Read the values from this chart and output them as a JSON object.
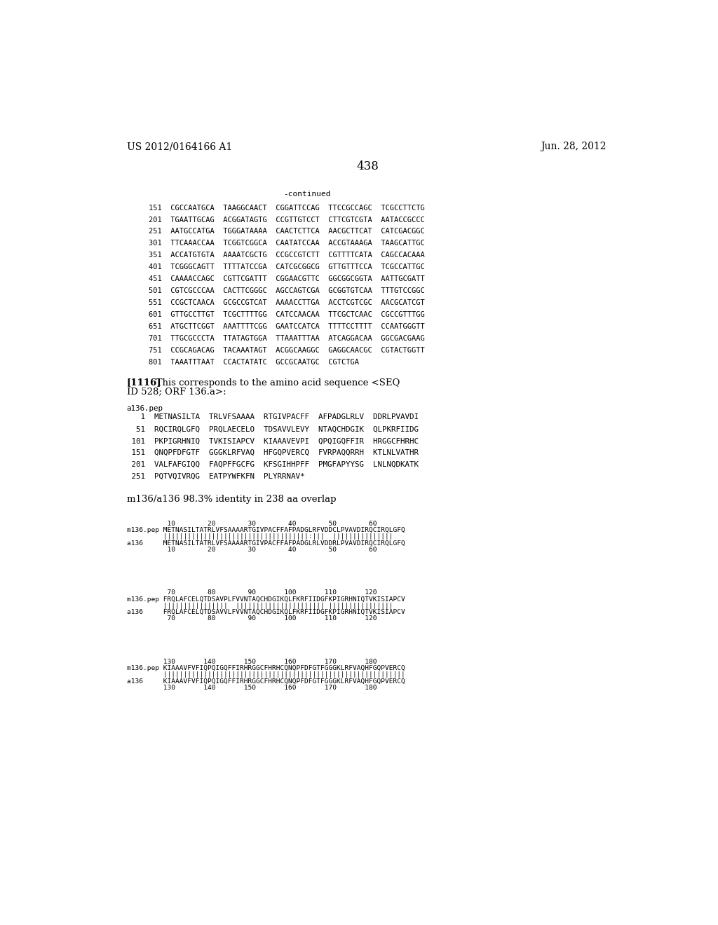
{
  "header_left": "US 2012/0164166 A1",
  "header_right": "Jun. 28, 2012",
  "page_number": "438",
  "continued_label": "-continued",
  "background_color": "#ffffff",
  "text_color": "#000000",
  "dna_lines": [
    "151  CGCCAATGCA  TAAGGCAACT  CGGATTCCAG  TTCCGCCAGC  TCGCCTTCTG",
    "201  TGAATTGCAG  ACGGATAGTG  CCGTTGTCCT  CTTCGTCGTA  AATACCGCCC",
    "251  AATGCCATGA  TGGGATAAAA  CAACTCTTCA  AACGCTTCAT  CATCGACGGC",
    "301  TTCAAACCAA  TCGGTCGGCA  CAATATCCAA  ACCGTAAAGA  TAAGCATTGC",
    "351  ACCATGTGTA  AAAATCGCTG  CCGCCGTCTT  CGTTTTCATA  CAGCCACAAA",
    "401  TCGGGCAGTT  TTTTATCCGA  CATCGCGGCG  GTTGTTTCCA  TCGCCATTGC",
    "451  CAAAACCAGC  CGTTCGATTT  CGGAACGTTC  GGCGGCGGTA  AATTGCGATT",
    "501  CGTCGCCCAA  CACTTCGGGC  AGCCAGTCGA  GCGGTGTCAA  TTTGTCCGGC",
    "551  CCGCTCAACA  GCGCCGTCAT  AAAACCTTGA  ACCTCGTCGC  AACGCATCGT",
    "601  GTTGCCTTGT  TCGCTTTTGG  CATCCAACAA  TTCGCTCAAC  CGCCGTTTGG",
    "651  ATGCTTCGGT  AAATTTTCGG  GAATCCATCA  TTTTCCTTTT  CCAATGGGTT",
    "701  TTGCGCCCTA  TTATAGTGGA  TTAAATTTAA  ATCAGGACAA  GGCGACGAAG",
    "751  CCGCAGACAG  TACAAATAGT  ACGGCAAGGC  GAGGCAACGC  CGTACTGGTT",
    "801  TAAATTTAAT  CCACTATATC  GCCGCAATGC  CGTCTGA"
  ],
  "para1116_bold": "[1116]",
  "para1116_normal_1": "   This corresponds to the amino acid sequence <SEQ",
  "para1116_normal_2": "ID 528; ORF 136.a>:",
  "pep_label": "a136.pep",
  "pep_lines": [
    "   1  METNASILTA  TRLVFSAAAA  RTGIVPACFF  AFPADGLRLV  DDRLPVAVDI",
    "  51  RQCIRQLGFQ  PRQLAECELO  TDSAVVLEVY  NTAQCHDGIK  QLPKRFIIDG",
    " 101  PKPIGRHNIQ  TVKISIAPCV  KIAAAVEVPI  QPQIGQFFIR  HRGGCFHRHC",
    " 151  QNQPFDFGTF  GGGKLRFVAQ  HFGQPVERCQ  FVRPAQQRRH  KTLNLVATHR",
    " 201  VALFAFGIQQ  FAQPFFGCFG  KFSGIHHPFF  PMGFAPYYSG  LNLNQDKATK",
    " 251  PQTVQIVRQG  EATPYWFKFN  PLYRRNAV*"
  ],
  "identity_label": "m136/a136 98.3% identity in 238 aa overlap",
  "align_block1_nums": "          10        20        30        40        50        60",
  "align_block1_m136": "m136.pep METNASILTATRLVFSAAAARTGIVPACFFAFPADGLRFVDDCLPVAVDIRQCIRQLGFQ",
  "align_block1_match": "         ||||||||||||||||||||||||||||||||||||:|||  |||||||||||||||",
  "align_block1_a136": "a136     METNASILTATRLVFSAAAARTGIVPACFFAFPADGLRLVDDRLPVAVDIRQCIRQLGFQ",
  "align_block1_nums2": "          10        20        30        40        50        60",
  "align_block2_nums": "          70        80        90       100       110       120",
  "align_block2_m136": "m136.pep FRQLAFCELQTDSAVPLFVVNTAQCHDGIKQLFKRFIIDGFKPIGRHNIQTVKISIAPCV",
  "align_block2_match": "         ||||||||||||||||  |||||||||||||||||||||| ||||||||||||||||",
  "align_block2_a136": "a136     FRQLAFCELQTDSAVVLFVVNTAQCHDGIKQLFKRFIIDGFKPIGRHNIQTVKISIAPCV",
  "align_block2_nums2": "          70        80        90       100       110       120",
  "align_block3_nums": "         130       140       150       160       170       180",
  "align_block3_m136": "m136.pep KIAAAVFVFIQPQIGQFFIRHRGGCFHRHCQNQPFDFGTFGGGKLRFVAQHFGQPVERCQ",
  "align_block3_match": "         ||||||||||||||||||||||||||||||||||||||||||||||||||||||||||||",
  "align_block3_a136": "a136     KIAAAVFVFIQPQIGQFFIRHRGGCFHRHCQNQPFDFGTFGGGKLRFVAQHFGQPVERCQ",
  "align_block3_nums2": "         130       140       150       160       170       180"
}
